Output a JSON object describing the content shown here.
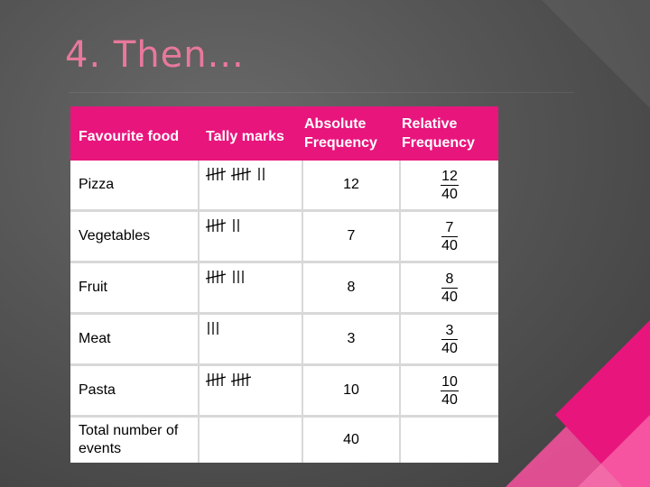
{
  "title": "4. Then...",
  "colors": {
    "accent": "#e8157d",
    "title": "#e8789c",
    "background": "#555555"
  },
  "table": {
    "headers": {
      "food": "Favourite food",
      "tally": "Tally marks",
      "absolute_line1": "Absolute",
      "absolute_line2": "Frequency",
      "relative_line1": "Relative",
      "relative_line2": "Frequency"
    },
    "rows": [
      {
        "food": "Pizza",
        "tally_count": 12,
        "absolute": "12",
        "rel_num": "12",
        "rel_den": "40"
      },
      {
        "food": "Vegetables",
        "tally_count": 7,
        "absolute": "7",
        "rel_num": "7",
        "rel_den": "40"
      },
      {
        "food": "Fruit",
        "tally_count": 8,
        "absolute": "8",
        "rel_num": "8",
        "rel_den": "40"
      },
      {
        "food": "Meat",
        "tally_count": 3,
        "absolute": "3",
        "rel_num": "3",
        "rel_den": "40"
      },
      {
        "food": "Pasta",
        "tally_count": 10,
        "absolute": "10",
        "rel_num": "10",
        "rel_den": "40"
      }
    ],
    "total": {
      "label": "Total number of events",
      "absolute": "40"
    }
  }
}
